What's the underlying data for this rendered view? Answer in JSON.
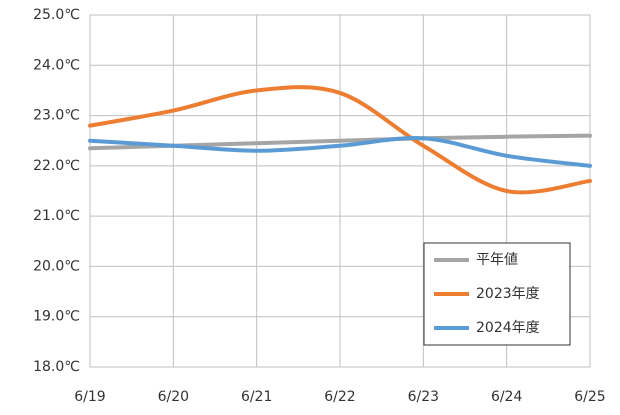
{
  "chart_data": {
    "type": "line",
    "categories": [
      "6/19",
      "6/20",
      "6/21",
      "6/22",
      "6/23",
      "6/24",
      "6/25"
    ],
    "series": [
      {
        "name": "平年値",
        "color": "#a5a5a5",
        "values": [
          22.35,
          22.4,
          22.45,
          22.5,
          22.55,
          22.58,
          22.6
        ]
      },
      {
        "name": "2023年度",
        "color": "#ed7d31",
        "values": [
          22.8,
          23.1,
          23.5,
          23.45,
          22.4,
          21.5,
          21.7
        ]
      },
      {
        "name": "2024年度",
        "color": "#5b9bd5",
        "values": [
          22.5,
          22.4,
          22.3,
          22.4,
          22.55,
          22.2,
          22.0
        ]
      }
    ],
    "ylim": [
      18,
      25
    ],
    "yticks": [
      {
        "value": 18,
        "label": "18.0℃"
      },
      {
        "value": 19,
        "label": "19.0℃"
      },
      {
        "value": 20,
        "label": "20.0℃"
      },
      {
        "value": 21,
        "label": "21.0℃"
      },
      {
        "value": 22,
        "label": "22.0℃"
      },
      {
        "value": 23,
        "label": "23.0℃"
      },
      {
        "value": 24,
        "label": "24.0℃"
      },
      {
        "value": 25,
        "label": "25.0℃"
      }
    ],
    "grid": true,
    "smooth": true,
    "legend": "lower right"
  }
}
